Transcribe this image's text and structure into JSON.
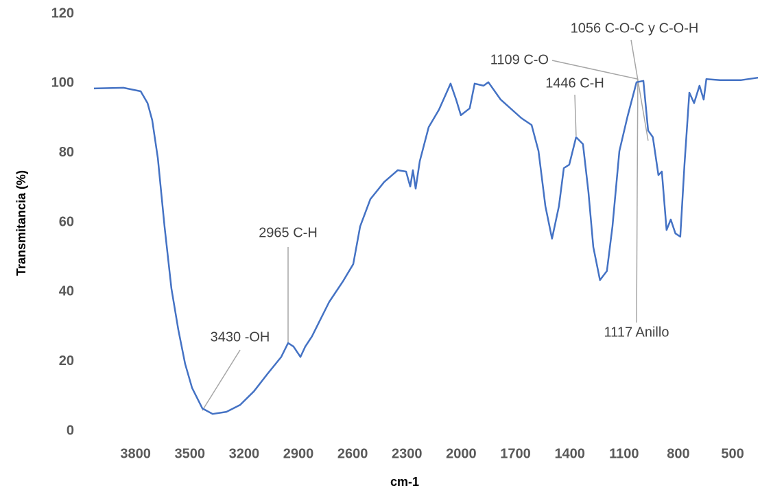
{
  "chart_data": {
    "type": "line",
    "xlabel": "cm-1",
    "ylabel": "Transmitancia (%)",
    "x": [
      4030,
      3867,
      3772,
      3734,
      3708,
      3677,
      3640,
      3602,
      3564,
      3526,
      3488,
      3431,
      3374,
      3298,
      3222,
      3146,
      3071,
      2995,
      2957,
      2927,
      2889,
      2862,
      2825,
      2787,
      2730,
      2654,
      2597,
      2559,
      2502,
      2426,
      2351,
      2305,
      2282,
      2267,
      2252,
      2229,
      2180,
      2123,
      2059,
      2028,
      2002,
      1953,
      1926,
      1877,
      1850,
      1782,
      1668,
      1611,
      1573,
      1535,
      1498,
      1460,
      1433,
      1403,
      1365,
      1327,
      1297,
      1270,
      1233,
      1195,
      1164,
      1126,
      1081,
      1031,
      993,
      967,
      941,
      910,
      891,
      865,
      842,
      816,
      789,
      766,
      739,
      713,
      683,
      660,
      645,
      569,
      455,
      360
    ],
    "values": [
      98.5,
      98.7,
      97.7,
      94.3,
      89.4,
      78.5,
      58.8,
      41,
      29.2,
      19.3,
      12.4,
      6.5,
      4.9,
      5.5,
      7.5,
      11.4,
      16.4,
      21.3,
      25.3,
      24.3,
      21.3,
      24.3,
      27.2,
      31.2,
      37.1,
      43,
      48,
      58.8,
      66.7,
      71.6,
      75,
      74.6,
      70.3,
      75,
      69.7,
      77.6,
      87.4,
      92.4,
      99.9,
      95.3,
      90.8,
      92.8,
      99.9,
      99.3,
      100.3,
      95.3,
      90,
      88,
      80.5,
      64.7,
      55.3,
      64.7,
      75.6,
      76.6,
      84.5,
      82.5,
      68.7,
      52.9,
      43.4,
      46,
      58.8,
      80.5,
      90.4,
      100.3,
      100.7,
      86.4,
      84.5,
      73.6,
      74.6,
      57.8,
      60.8,
      56.8,
      55.9,
      76.6,
      97.3,
      94.3,
      99.3,
      95.3,
      101.2,
      100.9,
      100.9,
      101.6
    ],
    "color": "#4472c4",
    "xlim": [
      4030,
      360
    ],
    "xticks": [
      3800,
      3500,
      3200,
      2900,
      2600,
      2300,
      2000,
      1700,
      1400,
      1100,
      800,
      500
    ],
    "ylim": [
      0,
      120
    ],
    "yticks": [
      0,
      20,
      40,
      60,
      80,
      100,
      120
    ],
    "annotations": [
      {
        "text": "3430 -OH",
        "x": 3431,
        "y": 5.9
      },
      {
        "text": "2965 C-H",
        "x": 2957,
        "y": 25.3
      },
      {
        "text": "1446 C-H",
        "x": 1365,
        "y": 84.9
      },
      {
        "text": "1109 C-O",
        "x": 1024,
        "y": 101.2
      },
      {
        "text": "1056 C-O-C y C-O-H",
        "x": 967,
        "y": 83.5
      },
      {
        "text": "1117 Anillo",
        "x": 1024,
        "y": 101.2
      }
    ]
  }
}
